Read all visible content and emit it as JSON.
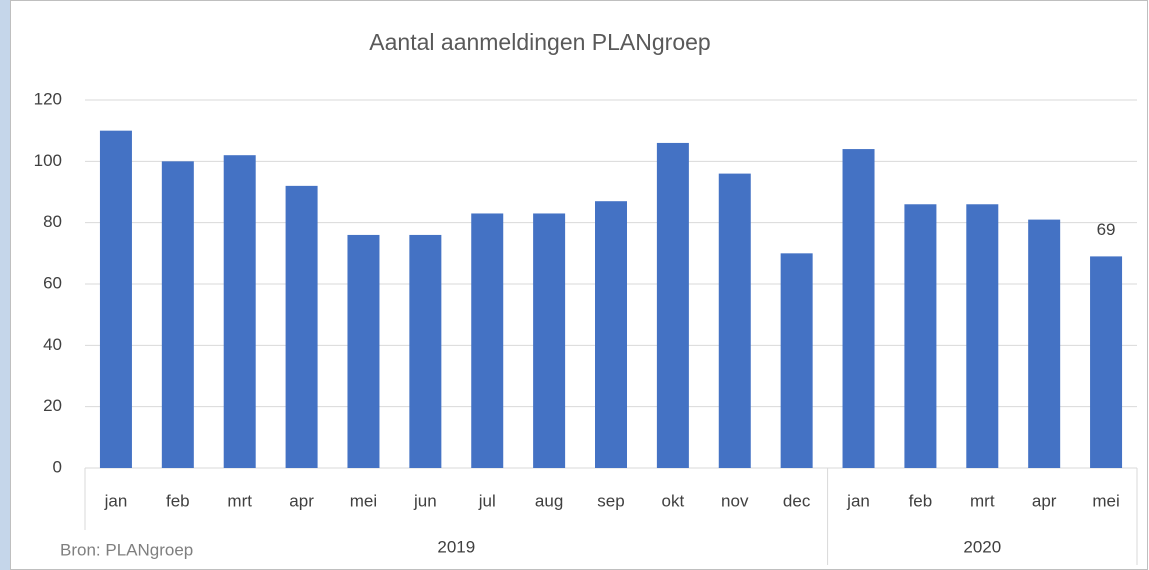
{
  "chart_data": {
    "type": "bar",
    "title": "Aantal aanmeldingen PLANgroep",
    "groups": [
      {
        "name": "2019",
        "categories": [
          "jan",
          "feb",
          "mrt",
          "apr",
          "mei",
          "jun",
          "jul",
          "aug",
          "sep",
          "okt",
          "nov",
          "dec"
        ]
      },
      {
        "name": "2020",
        "categories": [
          "jan",
          "feb",
          "mrt",
          "apr",
          "mei"
        ]
      }
    ],
    "values": [
      110,
      100,
      102,
      92,
      76,
      76,
      83,
      83,
      87,
      106,
      96,
      70,
      104,
      86,
      86,
      81,
      69
    ],
    "color": "#4472c4",
    "ylim": [
      0,
      120
    ],
    "yticks": [
      0,
      20,
      40,
      60,
      80,
      100,
      120
    ],
    "grid": true,
    "data_label": "last",
    "source": "Bron: PLANgroep"
  }
}
